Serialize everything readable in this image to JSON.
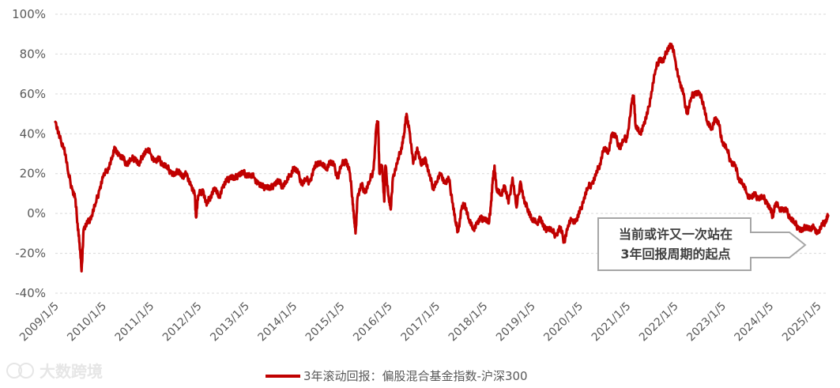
{
  "chart_data": {
    "type": "line",
    "title": "",
    "xlabel": "",
    "ylabel": "",
    "ylim": [
      -40,
      100
    ],
    "y_ticks": [
      "100%",
      "80%",
      "60%",
      "40%",
      "20%",
      "0%",
      "-20%",
      "-40%"
    ],
    "y_tick_values": [
      100,
      80,
      60,
      40,
      20,
      0,
      -20,
      -40
    ],
    "x_ticks": [
      "2009/1/5",
      "2010/1/5",
      "2011/1/5",
      "2012/1/5",
      "2013/1/5",
      "2014/1/5",
      "2015/1/5",
      "2016/1/5",
      "2017/1/5",
      "2018/1/5",
      "2019/1/5",
      "2020/1/5",
      "2021/1/5",
      "2022/1/5",
      "2023/1/5",
      "2024/1/5",
      "2025/1/5"
    ],
    "grid": "horizontal",
    "legend_position": "bottom",
    "series": [
      {
        "name": "3年滚动回报：偏股混合基金指数-沪深300",
        "color": "#c00000",
        "points": [
          [
            "2009-01-05",
            46
          ],
          [
            "2009-02-05",
            38
          ],
          [
            "2009-03-15",
            33
          ],
          [
            "2009-04-15",
            20
          ],
          [
            "2009-05-15",
            12
          ],
          [
            "2009-06-05",
            8
          ],
          [
            "2009-06-25",
            -5
          ],
          [
            "2009-07-10",
            -15
          ],
          [
            "2009-07-25",
            -29
          ],
          [
            "2009-08-10",
            -8
          ],
          [
            "2009-09-10",
            -5
          ],
          [
            "2009-10-10",
            -1
          ],
          [
            "2009-11-10",
            5
          ],
          [
            "2009-12-10",
            12
          ],
          [
            "2010-01-05",
            18
          ],
          [
            "2010-02-15",
            23
          ],
          [
            "2010-03-20",
            29
          ],
          [
            "2010-04-10",
            33
          ],
          [
            "2010-05-10",
            29
          ],
          [
            "2010-06-10",
            27
          ],
          [
            "2010-07-10",
            25
          ],
          [
            "2010-08-10",
            27
          ],
          [
            "2010-09-10",
            28
          ],
          [
            "2010-10-10",
            24
          ],
          [
            "2010-11-10",
            30
          ],
          [
            "2010-12-10",
            32
          ],
          [
            "2011-01-05",
            30
          ],
          [
            "2011-02-10",
            26
          ],
          [
            "2011-03-10",
            27
          ],
          [
            "2011-04-10",
            25
          ],
          [
            "2011-05-10",
            23
          ],
          [
            "2011-06-10",
            21
          ],
          [
            "2011-07-10",
            19
          ],
          [
            "2011-08-10",
            22
          ],
          [
            "2011-09-10",
            18
          ],
          [
            "2011-10-10",
            20
          ],
          [
            "2011-11-10",
            14
          ],
          [
            "2011-12-10",
            9
          ],
          [
            "2011-12-20",
            -2
          ],
          [
            "2012-01-05",
            9
          ],
          [
            "2012-02-10",
            12
          ],
          [
            "2012-03-10",
            4
          ],
          [
            "2012-04-10",
            9
          ],
          [
            "2012-05-10",
            13
          ],
          [
            "2012-06-10",
            8
          ],
          [
            "2012-07-10",
            13
          ],
          [
            "2012-08-10",
            16
          ],
          [
            "2012-09-10",
            19
          ],
          [
            "2012-10-10",
            17
          ],
          [
            "2012-11-10",
            20
          ],
          [
            "2012-12-10",
            20
          ],
          [
            "2013-01-05",
            20
          ],
          [
            "2013-02-10",
            19
          ],
          [
            "2013-03-10",
            18
          ],
          [
            "2013-04-10",
            15
          ],
          [
            "2013-05-10",
            13
          ],
          [
            "2013-06-10",
            14
          ],
          [
            "2013-07-10",
            12
          ],
          [
            "2013-08-10",
            15
          ],
          [
            "2013-09-10",
            16
          ],
          [
            "2013-10-10",
            14
          ],
          [
            "2013-11-10",
            16
          ],
          [
            "2013-12-10",
            19
          ],
          [
            "2014-01-05",
            23
          ],
          [
            "2014-02-10",
            20
          ],
          [
            "2014-03-10",
            15
          ],
          [
            "2014-04-10",
            17
          ],
          [
            "2014-05-10",
            16
          ],
          [
            "2014-06-10",
            22
          ],
          [
            "2014-07-10",
            26
          ],
          [
            "2014-08-10",
            25
          ],
          [
            "2014-09-10",
            22
          ],
          [
            "2014-10-10",
            26
          ],
          [
            "2014-11-10",
            24
          ],
          [
            "2014-12-10",
            18
          ],
          [
            "2015-01-05",
            24
          ],
          [
            "2015-02-10",
            27
          ],
          [
            "2015-03-10",
            21
          ],
          [
            "2015-04-01",
            8
          ],
          [
            "2015-04-15",
            -3
          ],
          [
            "2015-04-25",
            -10
          ],
          [
            "2015-05-10",
            8
          ],
          [
            "2015-06-10",
            14
          ],
          [
            "2015-07-10",
            11
          ],
          [
            "2015-08-10",
            16
          ],
          [
            "2015-09-10",
            22
          ],
          [
            "2015-10-01",
            43
          ],
          [
            "2015-10-15",
            46
          ],
          [
            "2015-10-25",
            20
          ],
          [
            "2015-11-15",
            24
          ],
          [
            "2015-12-01",
            6
          ],
          [
            "2015-12-10",
            24
          ],
          [
            "2016-01-05",
            8
          ],
          [
            "2016-01-20",
            2
          ],
          [
            "2016-02-05",
            18
          ],
          [
            "2016-03-10",
            25
          ],
          [
            "2016-04-10",
            33
          ],
          [
            "2016-05-01",
            40
          ],
          [
            "2016-05-20",
            50
          ],
          [
            "2016-06-10",
            42
          ],
          [
            "2016-07-10",
            25
          ],
          [
            "2016-08-10",
            33
          ],
          [
            "2016-09-10",
            24
          ],
          [
            "2016-10-10",
            28
          ],
          [
            "2016-11-10",
            19
          ],
          [
            "2016-12-10",
            13
          ],
          [
            "2017-01-05",
            16
          ],
          [
            "2017-02-10",
            20
          ],
          [
            "2017-03-10",
            15
          ],
          [
            "2017-04-10",
            17
          ],
          [
            "2017-05-10",
            5
          ],
          [
            "2017-06-01",
            -5
          ],
          [
            "2017-06-20",
            -9
          ],
          [
            "2017-07-15",
            2
          ],
          [
            "2017-08-10",
            5
          ],
          [
            "2017-09-10",
            -3
          ],
          [
            "2017-10-10",
            -8
          ],
          [
            "2017-11-10",
            -5
          ],
          [
            "2017-12-10",
            -3
          ],
          [
            "2018-01-05",
            -2
          ],
          [
            "2018-02-10",
            -5
          ],
          [
            "2018-02-25",
            4
          ],
          [
            "2018-03-10",
            15
          ],
          [
            "2018-03-25",
            24
          ],
          [
            "2018-04-10",
            12
          ],
          [
            "2018-05-10",
            9
          ],
          [
            "2018-06-10",
            14
          ],
          [
            "2018-07-10",
            5
          ],
          [
            "2018-08-10",
            18
          ],
          [
            "2018-09-10",
            3
          ],
          [
            "2018-10-10",
            16
          ],
          [
            "2018-11-10",
            5
          ],
          [
            "2018-12-10",
            2
          ],
          [
            "2019-01-05",
            -3
          ],
          [
            "2019-02-10",
            -5
          ],
          [
            "2019-03-10",
            -2
          ],
          [
            "2019-04-10",
            -8
          ],
          [
            "2019-05-10",
            -7
          ],
          [
            "2019-06-10",
            -9
          ],
          [
            "2019-07-10",
            -11
          ],
          [
            "2019-08-10",
            -7
          ],
          [
            "2019-09-10",
            -14
          ],
          [
            "2019-10-10",
            -6
          ],
          [
            "2019-11-10",
            -3
          ],
          [
            "2019-12-10",
            -4
          ],
          [
            "2020-01-05",
            0
          ],
          [
            "2020-02-10",
            8
          ],
          [
            "2020-03-10",
            13
          ],
          [
            "2020-04-10",
            15
          ],
          [
            "2020-05-10",
            19
          ],
          [
            "2020-06-10",
            25
          ],
          [
            "2020-07-10",
            33
          ],
          [
            "2020-08-10",
            30
          ],
          [
            "2020-09-10",
            40
          ],
          [
            "2020-10-10",
            38
          ],
          [
            "2020-11-10",
            33
          ],
          [
            "2020-12-10",
            37
          ],
          [
            "2021-01-05",
            38
          ],
          [
            "2021-02-10",
            56
          ],
          [
            "2021-02-25",
            59
          ],
          [
            "2021-03-10",
            44
          ],
          [
            "2021-04-10",
            40
          ],
          [
            "2021-05-10",
            44
          ],
          [
            "2021-06-10",
            50
          ],
          [
            "2021-07-10",
            61
          ],
          [
            "2021-08-10",
            72
          ],
          [
            "2021-09-10",
            78
          ],
          [
            "2021-10-10",
            76
          ],
          [
            "2021-11-10",
            83
          ],
          [
            "2021-12-10",
            85
          ],
          [
            "2022-01-05",
            78
          ],
          [
            "2022-02-10",
            66
          ],
          [
            "2022-03-10",
            60
          ],
          [
            "2022-04-10",
            50
          ],
          [
            "2022-05-10",
            58
          ],
          [
            "2022-06-10",
            61
          ],
          [
            "2022-07-10",
            60
          ],
          [
            "2022-08-10",
            56
          ],
          [
            "2022-09-10",
            46
          ],
          [
            "2022-10-10",
            42
          ],
          [
            "2022-11-10",
            48
          ],
          [
            "2022-12-10",
            44
          ],
          [
            "2023-01-05",
            36
          ],
          [
            "2023-02-10",
            32
          ],
          [
            "2023-03-10",
            26
          ],
          [
            "2023-04-10",
            24
          ],
          [
            "2023-05-10",
            18
          ],
          [
            "2023-06-10",
            15
          ],
          [
            "2023-07-10",
            10
          ],
          [
            "2023-08-10",
            8
          ],
          [
            "2023-09-10",
            9
          ],
          [
            "2023-10-10",
            8
          ],
          [
            "2023-11-10",
            8
          ],
          [
            "2023-12-10",
            6
          ],
          [
            "2024-01-05",
            2
          ],
          [
            "2024-01-25",
            -1
          ],
          [
            "2024-02-15",
            5
          ],
          [
            "2024-03-10",
            3
          ],
          [
            "2024-04-10",
            2
          ],
          [
            "2024-05-10",
            1
          ],
          [
            "2024-06-10",
            -2
          ],
          [
            "2024-07-10",
            -5
          ],
          [
            "2024-08-10",
            -7
          ],
          [
            "2024-09-10",
            -9
          ],
          [
            "2024-10-10",
            -6
          ],
          [
            "2024-11-10",
            -8
          ],
          [
            "2024-12-10",
            -7
          ],
          [
            "2025-01-05",
            -10
          ],
          [
            "2025-02-10",
            -6
          ],
          [
            "2025-03-10",
            -3
          ],
          [
            "2025-03-25",
            -1
          ]
        ]
      }
    ],
    "annotation": {
      "lines": [
        "当前或许又一次站在",
        "3年回报周期的起点"
      ],
      "style": "right-arrow"
    },
    "watermark": "大数跨境"
  }
}
